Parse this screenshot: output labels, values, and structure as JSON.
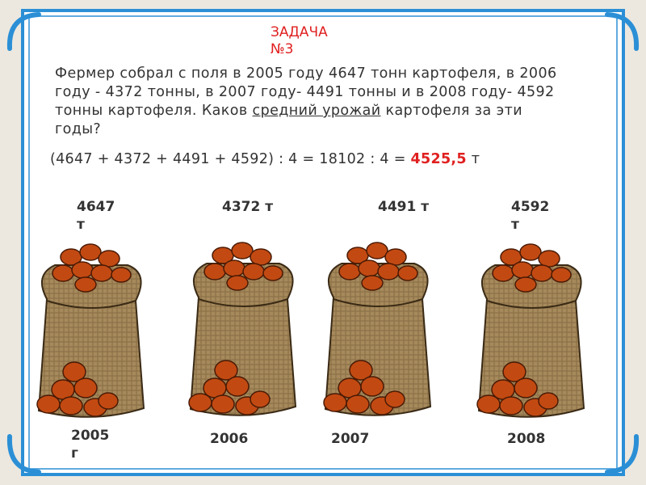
{
  "header": {
    "title": "ЗАДАЧА №3"
  },
  "problem": {
    "text_before": "Фермер собрал с поля в 2005 году 4647 тонн картофеля, в 2006 году - 4372 тонны, в 2007 году- 4491 тонны и в 2008 году- 4592 тонны картофеля. Каков ",
    "underlined": "средний урожай",
    "text_after": " картофеля за эти годы?"
  },
  "solution": {
    "expression": "(4647 + 4372 + 4491 + 4592) : 4 = 18102 : 4 = ",
    "result": "4525,5",
    "unit": " т"
  },
  "sacks": [
    {
      "amount": "4647 т",
      "year": "2005 г"
    },
    {
      "amount": "4372 т",
      "year": "2006"
    },
    {
      "amount": "4491 т",
      "year": "2007"
    },
    {
      "amount": "4592 т",
      "year": "2008"
    }
  ]
}
